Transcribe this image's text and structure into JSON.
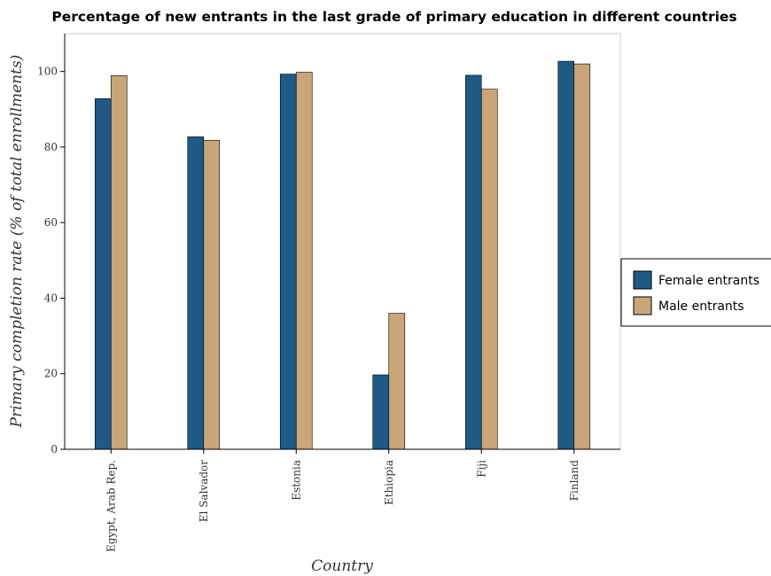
{
  "chart_data": {
    "type": "bar",
    "title": "Percentage of new entrants in the last grade of primary education in different countries",
    "xlabel": "Country",
    "ylabel": "Primary completion rate (% of total enrollments)",
    "categories": [
      "Egypt, Arab Rep.",
      "El Salvador",
      "Estonia",
      "Ethiopia",
      "Fiji",
      "Finland"
    ],
    "series": [
      {
        "name": "Female entrants",
        "color": "#1f5a87",
        "values": [
          92.8,
          82.7,
          99.3,
          19.7,
          99.0,
          102.7
        ]
      },
      {
        "name": "Male entrants",
        "color": "#c9a57a",
        "values": [
          98.9,
          81.8,
          99.8,
          36.0,
          95.3,
          102.0
        ]
      }
    ],
    "yticks": [
      0,
      20,
      40,
      60,
      80,
      100
    ],
    "ylim": [
      0,
      110
    ],
    "legend_position": "right",
    "grid": false
  }
}
